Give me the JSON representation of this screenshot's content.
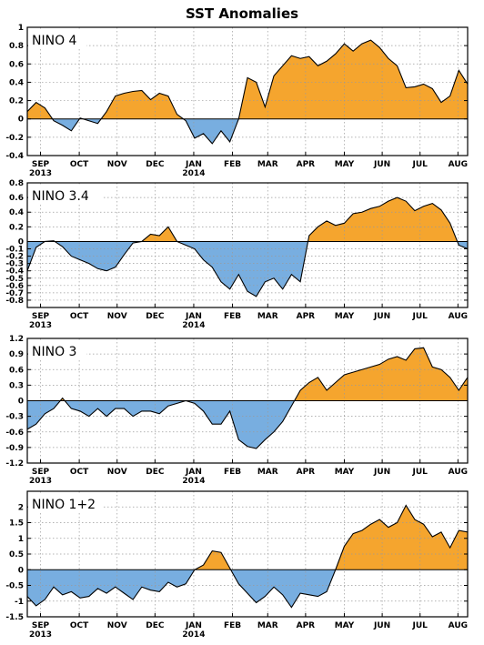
{
  "title": "SST Anomalies",
  "colors": {
    "positive": "#f5a52e",
    "negative": "#78aee0",
    "grid": "#9a9a9a",
    "line": "#000000"
  },
  "x_months": [
    "SEP",
    "OCT",
    "NOV",
    "DEC",
    "JAN",
    "FEB",
    "MAR",
    "APR",
    "MAY",
    "JUN",
    "JUL",
    "AUG"
  ],
  "x_years": [
    {
      "label": "2013",
      "month": "SEP"
    },
    {
      "label": "2014",
      "month": "JAN"
    }
  ],
  "chart_data": [
    {
      "type": "area",
      "title": "NINO 4",
      "ylim": [
        -0.4,
        1.0
      ],
      "yticks": [
        -0.4,
        -0.2,
        0,
        0.2,
        0.4,
        0.6,
        0.8,
        1
      ],
      "ytick_labels": [
        "-0.4",
        "-0.2",
        "0",
        "0.2",
        "0.4",
        "0.6",
        "0.8",
        "1"
      ],
      "x_weeks": [
        0,
        1,
        2,
        3,
        4,
        5,
        6,
        7,
        8,
        9,
        10,
        11,
        12,
        13,
        14,
        15,
        16,
        17,
        18,
        19,
        20,
        21,
        22,
        23,
        24,
        25,
        26,
        27,
        28,
        29,
        30,
        31,
        32,
        33,
        34,
        35,
        36,
        37,
        38,
        39,
        40,
        41,
        42,
        43,
        44,
        45,
        46,
        47,
        48,
        49,
        50
      ],
      "values": [
        0.08,
        0.18,
        0.12,
        -0.02,
        -0.07,
        -0.13,
        0.01,
        -0.02,
        -0.05,
        0.08,
        0.25,
        0.28,
        0.3,
        0.31,
        0.21,
        0.28,
        0.25,
        0.05,
        -0.02,
        -0.21,
        -0.16,
        -0.27,
        -0.13,
        -0.25,
        0.0,
        0.45,
        0.4,
        0.13,
        0.47,
        0.58,
        0.69,
        0.66,
        0.68,
        0.58,
        0.63,
        0.71,
        0.82,
        0.74,
        0.82,
        0.86,
        0.78,
        0.66,
        0.58,
        0.34,
        0.35,
        0.38,
        0.33,
        0.18,
        0.25,
        0.53,
        0.38
      ]
    },
    {
      "type": "area",
      "title": "NINO 3.4",
      "ylim": [
        -0.9,
        0.8
      ],
      "yticks": [
        -0.8,
        -0.7,
        -0.6,
        -0.5,
        -0.4,
        -0.3,
        -0.2,
        -0.1,
        0,
        0.2,
        0.4,
        0.6,
        0.8
      ],
      "ytick_labels": [
        "-0.8",
        "-0.7",
        "-0.6",
        "-0.5",
        "-0.4",
        "-0.3",
        "-0.2",
        "-0.1",
        "0",
        "0.2",
        "0.4",
        "0.6",
        "0.8"
      ],
      "x_weeks": [
        0,
        1,
        2,
        3,
        4,
        5,
        6,
        7,
        8,
        9,
        10,
        11,
        12,
        13,
        14,
        15,
        16,
        17,
        18,
        19,
        20,
        21,
        22,
        23,
        24,
        25,
        26,
        27,
        28,
        29,
        30,
        31,
        32,
        33,
        34,
        35,
        36,
        37,
        38,
        39,
        40,
        41,
        42,
        43,
        44,
        45,
        46,
        47,
        48,
        49,
        50
      ],
      "values": [
        -0.4,
        -0.08,
        0.0,
        0.01,
        -0.07,
        -0.2,
        -0.25,
        -0.3,
        -0.37,
        -0.4,
        -0.35,
        -0.18,
        -0.02,
        0.0,
        0.1,
        0.08,
        0.2,
        0.0,
        -0.05,
        -0.1,
        -0.25,
        -0.35,
        -0.55,
        -0.65,
        -0.45,
        -0.68,
        -0.75,
        -0.55,
        -0.5,
        -0.65,
        -0.45,
        -0.55,
        0.08,
        0.2,
        0.28,
        0.22,
        0.25,
        0.38,
        0.4,
        0.45,
        0.48,
        0.55,
        0.6,
        0.55,
        0.42,
        0.48,
        0.52,
        0.43,
        0.25,
        -0.05,
        -0.1
      ]
    },
    {
      "type": "area",
      "title": "NINO 3",
      "ylim": [
        -1.2,
        1.2
      ],
      "yticks": [
        -1.2,
        -0.9,
        -0.6,
        -0.3,
        0,
        0.3,
        0.6,
        0.9,
        1.2
      ],
      "ytick_labels": [
        "-1.2",
        "-0.9",
        "-0.6",
        "-0.3",
        "0",
        "0.3",
        "0.6",
        "0.9",
        "1.2"
      ],
      "x_weeks": [
        0,
        1,
        2,
        3,
        4,
        5,
        6,
        7,
        8,
        9,
        10,
        11,
        12,
        13,
        14,
        15,
        16,
        17,
        18,
        19,
        20,
        21,
        22,
        23,
        24,
        25,
        26,
        27,
        28,
        29,
        30,
        31,
        32,
        33,
        34,
        35,
        36,
        37,
        38,
        39,
        40,
        41,
        42,
        43,
        44,
        45,
        46,
        47,
        48,
        49,
        50
      ],
      "values": [
        -0.55,
        -0.45,
        -0.25,
        -0.15,
        0.05,
        -0.15,
        -0.2,
        -0.3,
        -0.15,
        -0.3,
        -0.15,
        -0.15,
        -0.3,
        -0.2,
        -0.2,
        -0.25,
        -0.1,
        -0.05,
        0.0,
        -0.05,
        -0.2,
        -0.45,
        -0.45,
        -0.2,
        -0.75,
        -0.88,
        -0.92,
        -0.75,
        -0.6,
        -0.4,
        -0.1,
        0.2,
        0.35,
        0.45,
        0.2,
        0.35,
        0.5,
        0.55,
        0.6,
        0.65,
        0.7,
        0.8,
        0.85,
        0.78,
        1.0,
        1.02,
        0.65,
        0.6,
        0.45,
        0.2,
        0.45
      ]
    },
    {
      "type": "area",
      "title": "NINO 1+2",
      "ylim": [
        -1.5,
        2.5
      ],
      "yticks": [
        -1.5,
        -1,
        -0.5,
        0,
        0.5,
        1,
        1.5,
        2
      ],
      "ytick_labels": [
        "-1.5",
        "-1",
        "-0.5",
        "0",
        "0.5",
        "1",
        "1.5",
        "2"
      ],
      "x_weeks": [
        0,
        1,
        2,
        3,
        4,
        5,
        6,
        7,
        8,
        9,
        10,
        11,
        12,
        13,
        14,
        15,
        16,
        17,
        18,
        19,
        20,
        21,
        22,
        23,
        24,
        25,
        26,
        27,
        28,
        29,
        30,
        31,
        32,
        33,
        34,
        35,
        36,
        37,
        38,
        39,
        40,
        41,
        42,
        43,
        44,
        45,
        46,
        47,
        48,
        49,
        50
      ],
      "values": [
        -0.85,
        -1.15,
        -0.95,
        -0.55,
        -0.8,
        -0.7,
        -0.9,
        -0.85,
        -0.6,
        -0.75,
        -0.55,
        -0.75,
        -0.95,
        -0.55,
        -0.65,
        -0.7,
        -0.4,
        -0.55,
        -0.45,
        0.0,
        0.15,
        0.6,
        0.55,
        0.05,
        -0.45,
        -0.75,
        -1.05,
        -0.85,
        -0.55,
        -0.8,
        -1.2,
        -0.75,
        -0.8,
        -0.85,
        -0.7,
        0.0,
        0.75,
        1.15,
        1.25,
        1.45,
        1.6,
        1.35,
        1.5,
        2.05,
        1.6,
        1.45,
        1.05,
        1.2,
        0.7,
        1.25,
        1.2
      ]
    }
  ]
}
